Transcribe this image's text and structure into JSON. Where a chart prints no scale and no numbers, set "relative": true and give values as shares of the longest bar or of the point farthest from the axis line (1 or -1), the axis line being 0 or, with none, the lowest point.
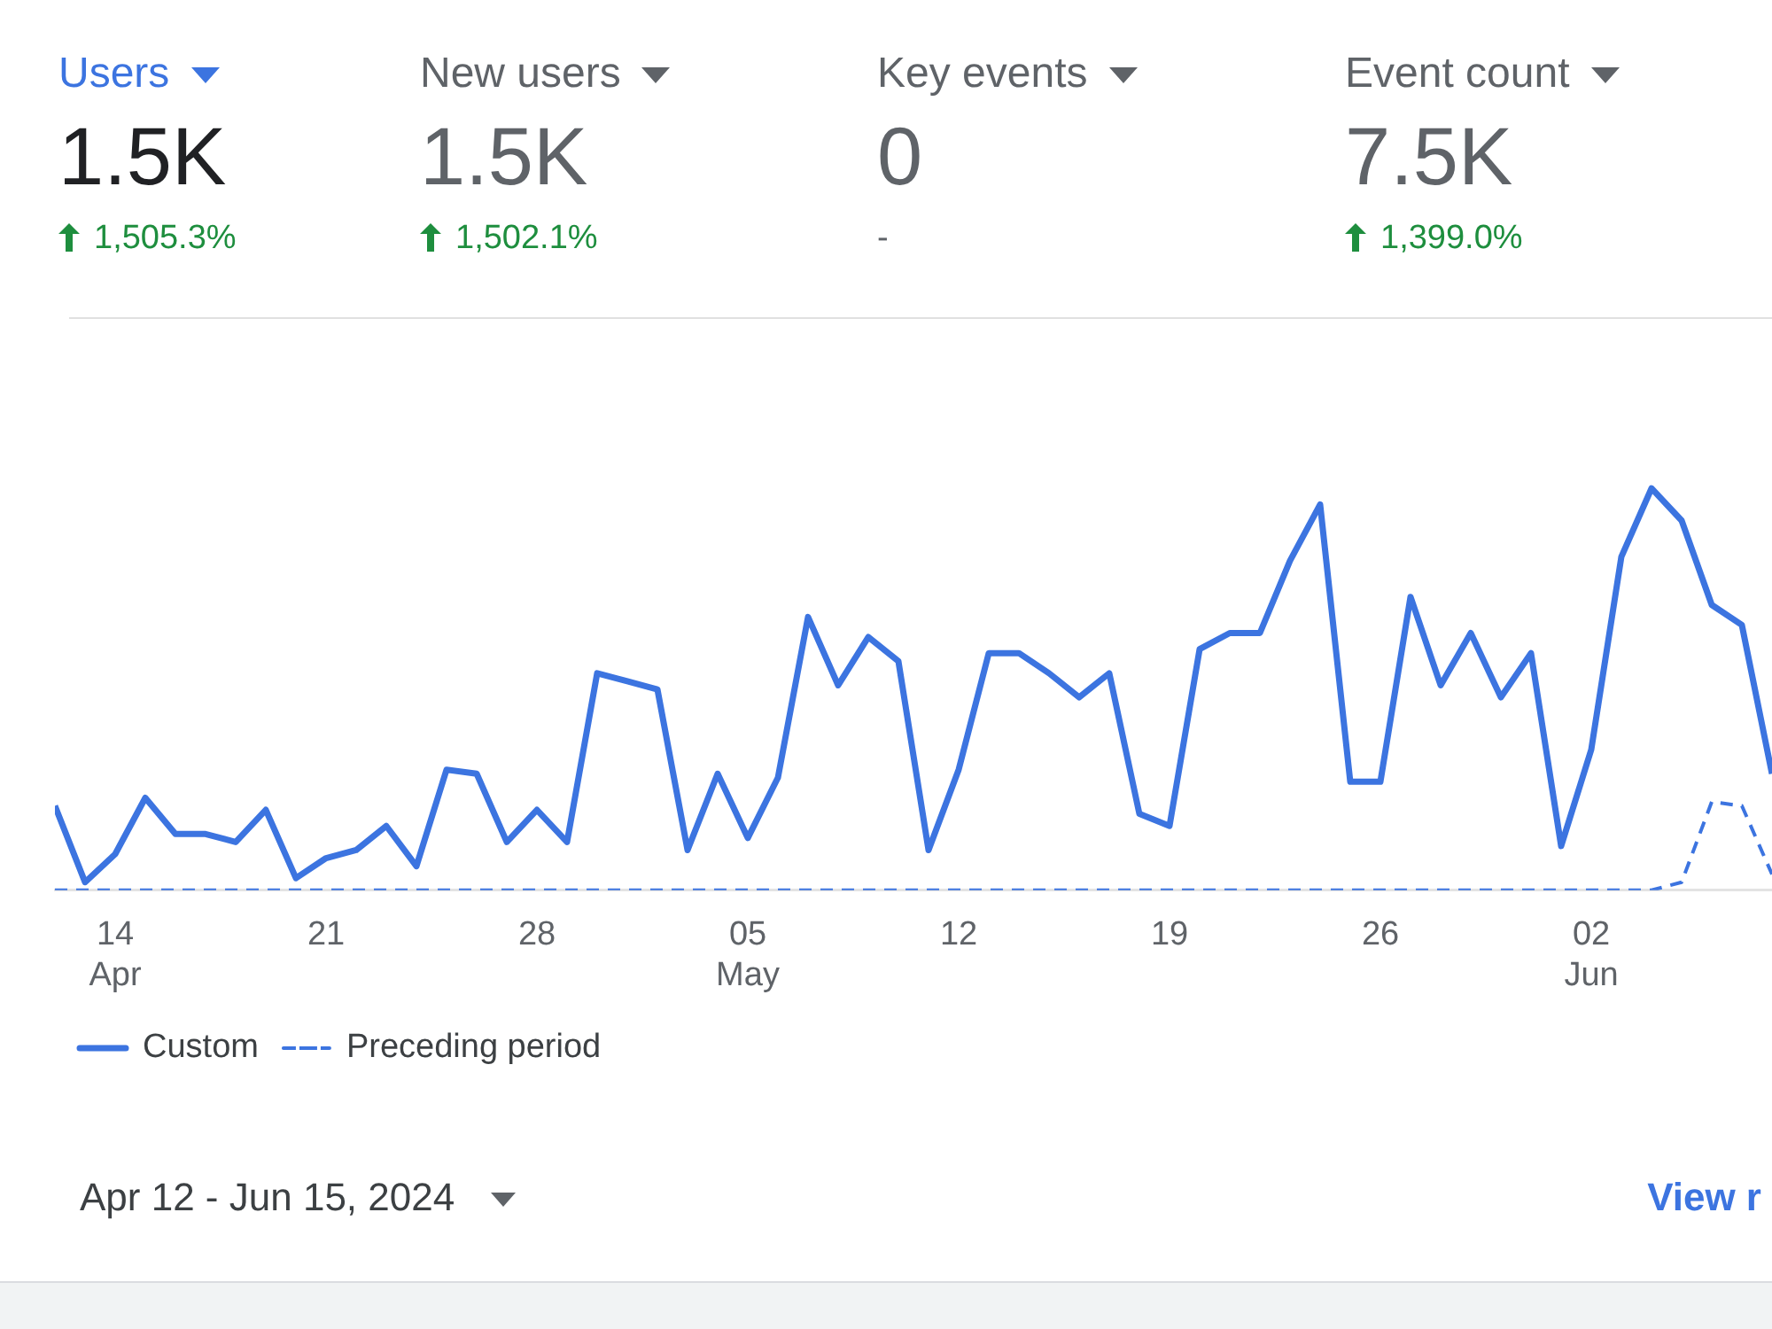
{
  "chart_data": [
    {
      "type": "other",
      "annotations": [
        "Users",
        "1.5K",
        "1,505.3%",
        "New users",
        "1.5K",
        "1,502.1%",
        "Key events",
        "0",
        "-",
        "Event count",
        "7.5K",
        "1,399.0%"
      ]
    },
    {
      "type": "line",
      "relative": true,
      "legend": "bottom left",
      "xlim": [
        "2024-04-12",
        "2024-06-08"
      ],
      "xticks": [
        {
          "value": "2024-04-14",
          "label": "14 Apr"
        },
        {
          "value": "2024-04-21",
          "label": "21"
        },
        {
          "value": "2024-04-28",
          "label": "28"
        },
        {
          "value": "2024-05-05",
          "label": "05 May"
        },
        {
          "value": "2024-05-12",
          "label": "12"
        },
        {
          "value": "2024-05-19",
          "label": "19"
        },
        {
          "value": "2024-05-26",
          "label": "26"
        },
        {
          "value": "2024-06-02",
          "label": "02 Jun"
        }
      ],
      "x": [
        "2024-04-12",
        "2024-04-13",
        "2024-04-14",
        "2024-04-15",
        "2024-04-16",
        "2024-04-17",
        "2024-04-18",
        "2024-04-19",
        "2024-04-20",
        "2024-04-21",
        "2024-04-22",
        "2024-04-23",
        "2024-04-24",
        "2024-04-25",
        "2024-04-26",
        "2024-04-27",
        "2024-04-28",
        "2024-04-29",
        "2024-04-30",
        "2024-05-01",
        "2024-05-02",
        "2024-05-03",
        "2024-05-04",
        "2024-05-05",
        "2024-05-06",
        "2024-05-07",
        "2024-05-08",
        "2024-05-09",
        "2024-05-10",
        "2024-05-11",
        "2024-05-12",
        "2024-05-13",
        "2024-05-14",
        "2024-05-15",
        "2024-05-16",
        "2024-05-17",
        "2024-05-18",
        "2024-05-19",
        "2024-05-20",
        "2024-05-21",
        "2024-05-22",
        "2024-05-23",
        "2024-05-24",
        "2024-05-25",
        "2024-05-26",
        "2024-05-27",
        "2024-05-28",
        "2024-05-29",
        "2024-05-30",
        "2024-05-31",
        "2024-06-01",
        "2024-06-02",
        "2024-06-03",
        "2024-06-04",
        "2024-06-05",
        "2024-06-06",
        "2024-06-07",
        "2024-06-08"
      ],
      "series": [
        {
          "name": "Custom",
          "color": "#3c74e0",
          "line_style": "solid",
          "values": [
            0.21,
            0.02,
            0.09,
            0.23,
            0.14,
            0.14,
            0.12,
            0.2,
            0.03,
            0.08,
            0.1,
            0.16,
            0.06,
            0.3,
            0.29,
            0.12,
            0.2,
            0.12,
            0.54,
            0.52,
            0.5,
            0.1,
            0.29,
            0.13,
            0.28,
            0.68,
            0.51,
            0.63,
            0.57,
            0.1,
            0.3,
            0.59,
            0.59,
            0.54,
            0.48,
            0.54,
            0.19,
            0.16,
            0.6,
            0.64,
            0.64,
            0.82,
            0.96,
            0.27,
            0.27,
            0.73,
            0.51,
            0.64,
            0.48,
            0.59,
            0.11,
            0.35,
            0.83,
            1,
            0.92,
            0.71,
            0.66,
            0.29
          ]
        },
        {
          "name": "Preceding period",
          "color": "#3c74e0",
          "line_style": "dashed",
          "values": [
            0,
            0,
            0,
            0,
            0,
            0,
            0,
            0,
            0,
            0,
            0,
            0,
            0,
            0,
            0,
            0,
            0,
            0,
            0,
            0,
            0,
            0,
            0,
            0,
            0,
            0,
            0,
            0,
            0,
            0,
            0,
            0,
            0,
            0,
            0,
            0,
            0,
            0,
            0,
            0,
            0,
            0,
            0,
            0,
            0,
            0,
            0,
            0,
            0,
            0,
            0,
            0,
            0,
            0,
            0.02,
            0.22,
            0.21,
            0.04
          ]
        }
      ],
      "annotations": [
        "Apr 12 - Jun 15, 2024",
        "View r"
      ]
    }
  ]
}
